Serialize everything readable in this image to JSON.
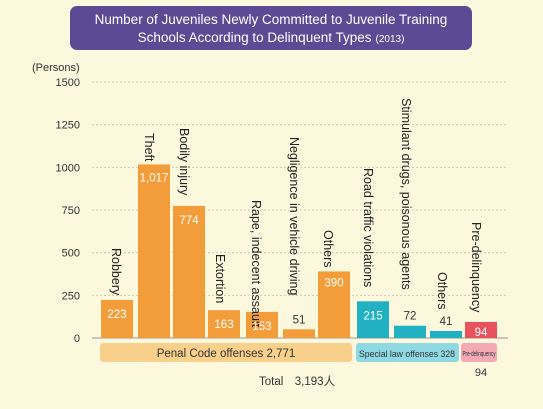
{
  "chart_data": {
    "type": "bar",
    "title": "Number of Juveniles Newly Committed to Juvenile Training",
    "title_line2": "Schools According to Delinquent Types",
    "title_year": "(2013)",
    "ylabel": "(Persons)",
    "ylim": [
      0,
      1500
    ],
    "yticks": [
      0,
      250,
      500,
      750,
      1000,
      1250,
      1500
    ],
    "grid": true,
    "categories": [
      "Robbery",
      "Theft",
      "Bodily injury",
      "Extortion",
      "Rape, indecent assault",
      "Negligence in vehicle driving",
      "Others",
      "Road traffic violations",
      "Stimulant drugs, poisonous agents",
      "Others",
      "Pre-delinquency"
    ],
    "values": [
      223,
      1017,
      774,
      163,
      153,
      51,
      390,
      215,
      72,
      41,
      94
    ],
    "value_labels": [
      "223",
      "1,017",
      "774",
      "163",
      "153",
      "51",
      "390",
      "215",
      "72",
      "41",
      "94"
    ],
    "groups": [
      {
        "label": "Penal Code offenses 2,771",
        "color": "#f39c3a"
      },
      {
        "label": "Special law offenses 328",
        "color": "#22b1c3"
      },
      {
        "label": "Pre-delinquency",
        "label_value": "94",
        "color": "#e8525f"
      }
    ],
    "total_label": "Total　3,193人"
  },
  "colors": {
    "background": "#fbf8de",
    "title_bg": "#5c4a94",
    "orange": "#f39c3a",
    "cyan": "#22b1c3",
    "red": "#e8525f",
    "penal_band": "#f8cf8b",
    "special_band": "#8fd9e3",
    "predelinquency_band": "#f3aab4",
    "grid": "#c9c4a6"
  }
}
